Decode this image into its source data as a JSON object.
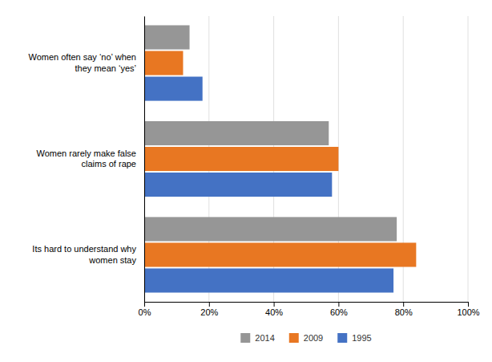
{
  "chart_data": {
    "type": "bar",
    "orientation": "horizontal",
    "categories": [
      "Its hard to understand why\nwomen stay",
      "Women rarely make false\nclaims of rape",
      "Women often say ‘no’ when\nthey mean ‘yes’"
    ],
    "series": [
      {
        "name": "2014",
        "color": "#969696",
        "values": [
          0.78,
          0.57,
          0.14
        ]
      },
      {
        "name": "2009",
        "color": "#E87722",
        "values": [
          0.84,
          0.6,
          0.12
        ]
      },
      {
        "name": "1995",
        "color": "#4472C4",
        "values": [
          0.77,
          0.58,
          0.18
        ]
      }
    ],
    "xlim": [
      0,
      1.0
    ],
    "xticks": [
      {
        "value": 0,
        "label": "0%"
      },
      {
        "value": 0.2,
        "label": "20%"
      },
      {
        "value": 0.4,
        "label": "40%"
      },
      {
        "value": 0.6,
        "label": "60%"
      },
      {
        "value": 0.8,
        "label": "80%"
      },
      {
        "value": 1.0,
        "label": "100%"
      }
    ],
    "grid": true,
    "legend": "bottom"
  }
}
